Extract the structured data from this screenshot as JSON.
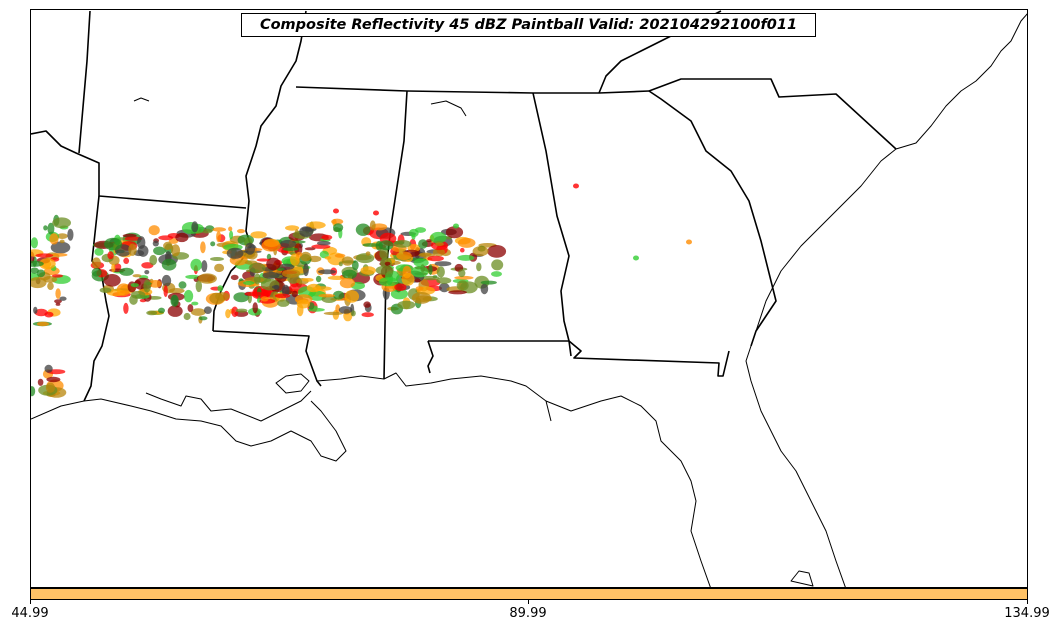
{
  "title": "Composite Reflectivity 45 dBZ Paintball Valid: 202104292100f011",
  "colorbar": {
    "color": "#ffc266",
    "ticks": [
      "44.99",
      "89.99",
      "134.99"
    ]
  },
  "paintball_colors": [
    "#ff0000",
    "#228b22",
    "#ff8c00",
    "#8b0000",
    "#6b8e23",
    "#404040",
    "#32cd32",
    "#ffa500",
    "#b8860b"
  ]
}
